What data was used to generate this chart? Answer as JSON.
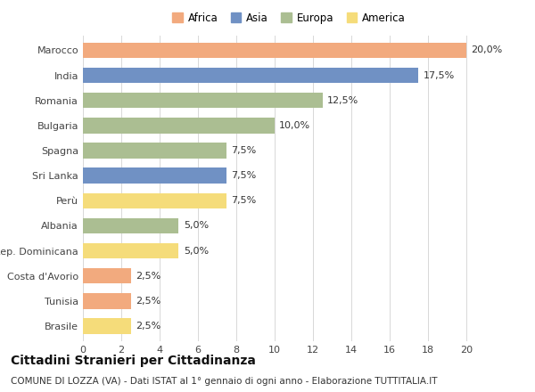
{
  "countries": [
    "Marocco",
    "India",
    "Romania",
    "Bulgaria",
    "Spagna",
    "Sri Lanka",
    "Perù",
    "Albania",
    "Rep. Dominicana",
    "Costa d'Avorio",
    "Tunisia",
    "Brasile"
  ],
  "values": [
    20.0,
    17.5,
    12.5,
    10.0,
    7.5,
    7.5,
    7.5,
    5.0,
    5.0,
    2.5,
    2.5,
    2.5
  ],
  "bar_colors": [
    "#F2AA7E",
    "#7091C4",
    "#ABBE92",
    "#ABBE92",
    "#ABBE92",
    "#7091C4",
    "#F5DC7A",
    "#ABBE92",
    "#F5DC7A",
    "#F2AA7E",
    "#F2AA7E",
    "#F5DC7A"
  ],
  "labels": [
    "20,0%",
    "17,5%",
    "12,5%",
    "10,0%",
    "7,5%",
    "7,5%",
    "7,5%",
    "5,0%",
    "5,0%",
    "2,5%",
    "2,5%",
    "2,5%"
  ],
  "xlim": [
    0,
    21.5
  ],
  "xticks": [
    0,
    2,
    4,
    6,
    8,
    10,
    12,
    14,
    16,
    18,
    20
  ],
  "title": "Cittadini Stranieri per Cittadinanza",
  "subtitle": "COMUNE DI LOZZA (VA) - Dati ISTAT al 1° gennaio di ogni anno - Elaborazione TUTTITALIA.IT",
  "legend_labels": [
    "Africa",
    "Asia",
    "Europa",
    "America"
  ],
  "legend_colors": [
    "#F2AA7E",
    "#7091C4",
    "#ABBE92",
    "#F5DC7A"
  ],
  "bg_color": "#ffffff",
  "grid_color": "#d8d8d8",
  "title_fontsize": 10,
  "subtitle_fontsize": 7.5,
  "label_fontsize": 8,
  "tick_fontsize": 8,
  "legend_fontsize": 8.5
}
